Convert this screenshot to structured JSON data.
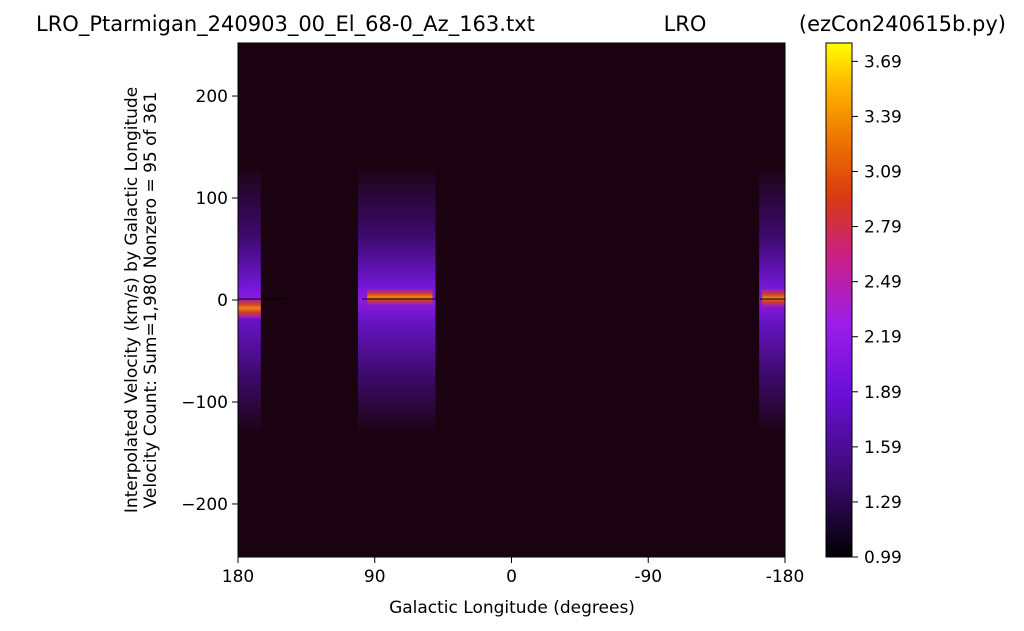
{
  "chart_data": {
    "type": "heatmap",
    "title_left": "LRO_Ptarmigan_240903_00_El_68-0_Az_163.txt",
    "title_center": "LRO",
    "title_right": "(ezCon240615b.py)",
    "xlabel": "Galactic Longitude (degrees)",
    "ylabel_line1": "Interpolated Velocity (km/s) by Galactic Longitude",
    "ylabel_line2": "Velocity Count: Sum=1,980 Nonzero = 95 of 361",
    "x_range": [
      180,
      -180
    ],
    "y_range": [
      -252,
      252
    ],
    "x_ticks": [
      {
        "value": 180,
        "label": "180"
      },
      {
        "value": 90,
        "label": "90"
      },
      {
        "value": 0,
        "label": "0"
      },
      {
        "value": -90,
        "label": "-90"
      },
      {
        "value": -180,
        "label": "-180"
      }
    ],
    "y_ticks": [
      {
        "value": 200,
        "label": "200"
      },
      {
        "value": 100,
        "label": "100"
      },
      {
        "value": 0,
        "label": "0"
      },
      {
        "value": -100,
        "label": "−100"
      },
      {
        "value": -200,
        "label": "−200"
      }
    ],
    "colorbar": {
      "range": [
        0.99,
        3.79
      ],
      "ticks": [
        "0.99",
        "1.29",
        "1.59",
        "1.89",
        "2.19",
        "2.49",
        "2.79",
        "3.09",
        "3.39",
        "3.69"
      ],
      "tick_values": [
        0.99,
        1.29,
        1.59,
        1.89,
        2.19,
        2.49,
        2.79,
        3.09,
        3.39,
        3.69
      ],
      "colormap": "gnuplot"
    },
    "background_value": 0.99,
    "observed_longitude_bands": [
      {
        "lon_from": 180,
        "lon_to": 165,
        "vel_min": -128,
        "vel_max": 128
      },
      {
        "lon_from": 101,
        "lon_to": 50,
        "vel_min": -128,
        "vel_max": 128
      },
      {
        "lon_from": -163,
        "lon_to": -180,
        "vel_min": -128,
        "vel_max": 128
      }
    ],
    "emission_features": [
      {
        "lon_from": 180,
        "lon_to": 165,
        "vel_center": -8,
        "vel_halfwidth": 10,
        "peak": 3.0
      },
      {
        "lon_from": 95,
        "lon_to": 52,
        "vel_center": 3,
        "vel_halfwidth": 8,
        "peak": 3.1
      },
      {
        "lon_from": -165,
        "lon_to": -180,
        "vel_center": 2,
        "vel_halfwidth": 9,
        "peak": 3.3
      }
    ]
  }
}
